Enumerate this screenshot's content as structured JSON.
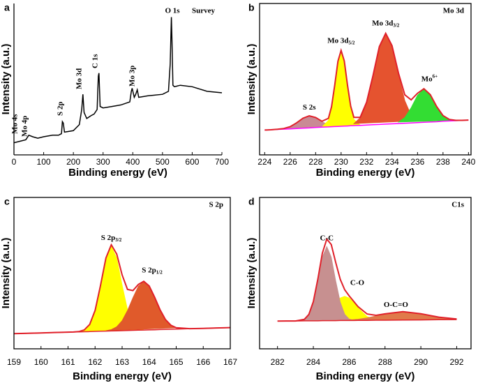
{
  "chart_data": [
    {
      "type": "line",
      "panel": "a",
      "title": "Survey",
      "xlabel": "Binding energy (eV)",
      "ylabel": "Intensity (a.u.)",
      "x": [
        0,
        20,
        40,
        50,
        63,
        80,
        100,
        130,
        150,
        160,
        163,
        166,
        170,
        200,
        220,
        228,
        232,
        236,
        245,
        260,
        270,
        280,
        284,
        286,
        290,
        300,
        330,
        360,
        390,
        395,
        398,
        405,
        410,
        415,
        420,
        450,
        500,
        520,
        526,
        530,
        532,
        535,
        540,
        560,
        600,
        650,
        700
      ],
      "series": [
        {
          "color": "#000000",
          "values": [
            8,
            9,
            10,
            13,
            12,
            11,
            12,
            13,
            13,
            14,
            22,
            21,
            15,
            16,
            20,
            30,
            40,
            28,
            24,
            26,
            27,
            30,
            52,
            54,
            32,
            31,
            32,
            33,
            35,
            42,
            44,
            38,
            40,
            43,
            38,
            39,
            40,
            42,
            60,
            91,
            75,
            46,
            45,
            46,
            45,
            42,
            41
          ]
        }
      ],
      "annotations": [
        {
          "text": "Mo 4s"
        },
        {
          "text": "Mo 4p"
        },
        {
          "text": "S 2p"
        },
        {
          "text": "Mo 3d"
        },
        {
          "text": "C 1s"
        },
        {
          "text": "Mo 3p"
        },
        {
          "text": "O 1s"
        }
      ],
      "xlim": [
        0,
        700
      ],
      "xticks": [
        0,
        100,
        200,
        300,
        400,
        500,
        600,
        700
      ],
      "ylim": [
        0,
        100
      ],
      "box": false
    },
    {
      "type": "area",
      "panel": "b",
      "title": "Mo 3d",
      "xlabel": "Binding energy (eV)",
      "ylabel": "Intensity (a.u.)",
      "x": [
        224,
        224.5,
        225,
        225.5,
        226,
        226.5,
        227,
        227.5,
        228,
        228.5,
        229,
        229.25,
        229.5,
        229.75,
        230,
        230.25,
        230.5,
        230.75,
        231,
        231.5,
        232,
        232.5,
        233,
        233.5,
        234,
        234.5,
        235,
        235.5,
        236,
        236.5,
        237,
        237.5,
        238,
        238.5,
        239,
        239.5,
        240
      ],
      "envelope": {
        "color": "#e0202a",
        "values": [
          16.4,
          16.6,
          16.9,
          17.4,
          18.6,
          21.1,
          24.2,
          25.8,
          24.7,
          22.2,
          24.1,
          31.8,
          46.1,
          61.9,
          69.0,
          62.0,
          46.3,
          32.3,
          24.8,
          24.8,
          34.7,
          52.3,
          71.5,
          80.3,
          72.1,
          54.1,
          39.7,
          36.3,
          40.7,
          43.7,
          39.8,
          32.0,
          26.0,
          23.4,
          22.8,
          22.8,
          23.0
        ]
      },
      "background": {
        "color": "#ff00ff",
        "values": [
          16.4,
          16.6,
          16.8,
          17.0,
          17.2,
          17.4,
          17.6,
          17.8,
          18.1,
          18.3,
          18.5,
          18.6,
          18.7,
          18.8,
          18.9,
          19.0,
          19.1,
          19.2,
          19.3,
          19.5,
          19.7,
          19.9,
          20.1,
          20.3,
          20.5,
          20.7,
          20.9,
          21.1,
          21.3,
          21.5,
          21.7,
          21.9,
          22.2,
          22.4,
          22.6,
          22.8,
          23.0
        ]
      },
      "components": [
        {
          "name": "S 2s",
          "color": "#c98a94",
          "x": [
            225.5,
            226,
            226.5,
            227,
            227.5,
            228,
            228.5,
            229,
            229.5
          ],
          "values": [
            17.4,
            18.6,
            21.1,
            24.2,
            25.8,
            24.7,
            22.0,
            19.9,
            19.1
          ]
        },
        {
          "name": "Mo 3d",
          "sub": "5/2",
          "color": "#ffff00",
          "x": [
            228.5,
            229,
            229.25,
            229.5,
            229.75,
            230,
            230.25,
            230.5,
            230.75,
            231,
            231.5
          ],
          "values": [
            18.5,
            22.7,
            31.1,
            45.7,
            61.7,
            68.9,
            61.9,
            46.1,
            31.7,
            23.5,
            19.7
          ]
        },
        {
          "name": "Mo 3d",
          "sub": "3/2",
          "color": "#e5532f",
          "x": [
            231,
            231.5,
            232,
            232.5,
            233,
            233.5,
            234,
            234.5,
            235,
            235.5,
            236
          ],
          "values": [
            20.6,
            24.6,
            34.7,
            52.3,
            71.5,
            80.3,
            71.9,
            53.1,
            35.9,
            26.2,
            22.6
          ]
        },
        {
          "name": "Mo",
          "sup": "6+",
          "color": "#33dd33",
          "x": [
            234.5,
            235,
            235.5,
            236,
            236.5,
            237,
            237.5,
            238,
            238.5,
            239
          ],
          "values": [
            21.7,
            24.7,
            31.2,
            39.4,
            43.5,
            39.8,
            32.0,
            26.0,
            23.4,
            22.8
          ]
        }
      ],
      "xlim": [
        223.6,
        240.2
      ],
      "xticks": [
        224,
        226,
        228,
        230,
        232,
        234,
        236,
        238,
        240
      ],
      "ylim": [
        0,
        100
      ],
      "box": true
    },
    {
      "type": "area",
      "panel": "c",
      "title": "S 2p",
      "xlabel": "Binding energy (eV)",
      "ylabel": "Intensity (a.u.)",
      "x": [
        159,
        160,
        160.5,
        161,
        161.2,
        161.4,
        161.6,
        161.8,
        162,
        162.2,
        162.4,
        162.6,
        162.8,
        163,
        163.2,
        163.4,
        163.6,
        163.8,
        164,
        164.2,
        164.4,
        164.6,
        164.8,
        165,
        165.5,
        166,
        166.5,
        167
      ],
      "envelope": {
        "color": "#e0202a",
        "values": [
          10.0,
          10.5,
          10.8,
          11.0,
          11.1,
          11.4,
          12.5,
          16.1,
          25.4,
          41.8,
          60.0,
          68.7,
          62.6,
          48.8,
          39.2,
          38.5,
          42.5,
          44.6,
          41.5,
          34.2,
          25.9,
          19.4,
          15.6,
          13.9,
          13.3,
          13.5,
          13.8,
          14.0
        ]
      },
      "background": {
        "color": "#e0202a",
        "values": [
          10.0,
          10.5,
          10.8,
          11.0,
          11.1,
          11.2,
          11.3,
          11.4,
          11.5,
          11.6,
          11.7,
          11.8,
          11.9,
          12.0,
          12.1,
          12.2,
          12.3,
          12.4,
          12.5,
          12.6,
          12.7,
          12.8,
          12.9,
          13.0,
          13.3,
          13.5,
          13.8,
          14.0
        ]
      },
      "components": [
        {
          "name": "S 2p",
          "sub": "3/2",
          "color": "#ffff00",
          "x": [
            161.4,
            161.6,
            161.8,
            162,
            162.2,
            162.4,
            162.6,
            162.8,
            163,
            163.2,
            163.4,
            163.6,
            163.8
          ],
          "values": [
            11.4,
            12.5,
            16.1,
            25.4,
            41.8,
            59.7,
            67.8,
            59.9,
            42.2,
            26.0,
            16.9,
            13.5,
            12.6
          ]
        },
        {
          "name": "S 2p",
          "sub": "1/2",
          "color": "#e05a2b",
          "x": [
            162.4,
            162.6,
            162.8,
            163,
            163.2,
            163.4,
            163.6,
            163.8,
            164,
            164.2,
            164.4,
            164.6,
            164.8,
            165
          ],
          "values": [
            12.0,
            12.7,
            14.6,
            18.6,
            25.3,
            33.8,
            41.3,
            44.4,
            41.5,
            34.2,
            25.9,
            19.4,
            15.6,
            13.9
          ]
        }
      ],
      "xlim": [
        159,
        167
      ],
      "xticks": [
        159,
        160,
        161,
        162,
        163,
        164,
        165,
        166,
        167
      ],
      "ylim": [
        0,
        100
      ],
      "box": true
    },
    {
      "type": "area",
      "panel": "d",
      "title": "C1s",
      "xlabel": "Binding energy (eV)",
      "ylabel": "Intensity (a.u.)",
      "x": [
        282,
        282.5,
        283,
        283.5,
        283.75,
        284,
        284.25,
        284.5,
        284.75,
        285,
        285.25,
        285.5,
        285.75,
        286,
        286.25,
        286.5,
        287,
        287.5,
        288,
        289,
        290,
        291,
        292
      ],
      "envelope": {
        "color": "#e0202a",
        "values": [
          18.3,
          18.4,
          18.4,
          19.5,
          22.7,
          31.1,
          46.1,
          63.1,
          72.5,
          68.9,
          57.0,
          45.9,
          39.0,
          35.0,
          31.4,
          27.8,
          23.0,
          22.1,
          23.1,
          24.5,
          23.2,
          20.9,
          19.7
        ]
      },
      "background": {
        "color": "#e0202a",
        "values": [
          18.3,
          18.4,
          18.4,
          18.5,
          18.5,
          18.5,
          18.5,
          18.6,
          18.6,
          18.6,
          18.6,
          18.7,
          18.7,
          18.7,
          18.7,
          18.8,
          18.8,
          18.9,
          18.9,
          19.0,
          19.1,
          19.2,
          19.3
        ]
      },
      "components": [
        {
          "name": "C-O",
          "color": "#ffff00",
          "x": [
            283.5,
            283.75,
            284,
            284.25,
            284.5,
            284.75,
            285,
            285.25,
            285.5,
            285.75,
            286,
            286.25,
            286.5,
            287,
            287.5,
            288
          ],
          "values": [
            18.5,
            18.6,
            18.9,
            19.7,
            21.1,
            23.5,
            26.8,
            30.5,
            33.6,
            34.7,
            33.6,
            30.6,
            27.0,
            21.3,
            19.3,
            19.0
          ]
        },
        {
          "name": "C-C",
          "color": "#c79090",
          "x": [
            283,
            283.5,
            283.75,
            284,
            284.25,
            284.5,
            284.75,
            285,
            285.25,
            285.5,
            285.75,
            286,
            286.25,
            286.5
          ],
          "values": [
            18.4,
            19.5,
            22.6,
            30.7,
            44.9,
            60.6,
            67.6,
            60.6,
            45.0,
            30.9,
            22.8,
            19.7,
            18.9,
            18.8
          ]
        },
        {
          "name": "O-C=O",
          "color": "#e07a4a",
          "x": [
            285,
            285.5,
            286,
            286.5,
            287,
            287.5,
            288,
            289,
            290,
            291,
            292
          ],
          "values": [
            18.7,
            18.8,
            19.1,
            19.6,
            20.5,
            21.7,
            23.0,
            24.5,
            23.2,
            20.9,
            19.7
          ]
        }
      ],
      "xlim": [
        281,
        292.8
      ],
      "xticks": [
        282,
        284,
        286,
        288,
        290,
        292
      ],
      "ylim": [
        0,
        100
      ],
      "box": true
    }
  ]
}
